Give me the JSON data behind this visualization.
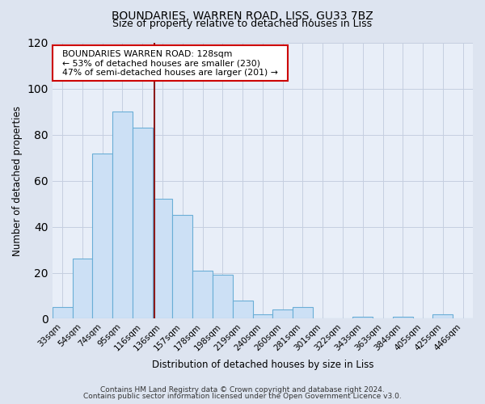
{
  "title": "BOUNDARIES, WARREN ROAD, LISS, GU33 7BZ",
  "subtitle": "Size of property relative to detached houses in Liss",
  "xlabel": "Distribution of detached houses by size in Liss",
  "ylabel": "Number of detached properties",
  "bar_categories": [
    "33sqm",
    "54sqm",
    "74sqm",
    "95sqm",
    "116sqm",
    "136sqm",
    "157sqm",
    "178sqm",
    "198sqm",
    "219sqm",
    "240sqm",
    "260sqm",
    "281sqm",
    "301sqm",
    "322sqm",
    "343sqm",
    "363sqm",
    "384sqm",
    "405sqm",
    "425sqm",
    "446sqm"
  ],
  "bar_values": [
    5,
    26,
    72,
    90,
    83,
    52,
    45,
    21,
    19,
    8,
    2,
    4,
    5,
    0,
    0,
    1,
    0,
    1,
    0,
    2,
    0
  ],
  "bar_color": "#cce0f5",
  "bar_edge_color": "#6aaed6",
  "ylim": [
    0,
    120
  ],
  "yticks": [
    0,
    20,
    40,
    60,
    80,
    100,
    120
  ],
  "vline_color": "#8b1a1a",
  "annotation_title": "BOUNDARIES WARREN ROAD: 128sqm",
  "annotation_line1": "← 53% of detached houses are smaller (230)",
  "annotation_line2": "47% of semi-detached houses are larger (201) →",
  "annotation_box_color": "#ffffff",
  "annotation_box_edge": "#cc0000",
  "footer1": "Contains HM Land Registry data © Crown copyright and database right 2024.",
  "footer2": "Contains public sector information licensed under the Open Government Licence v3.0.",
  "background_color": "#dde4f0",
  "plot_background": "#e8eef8",
  "grid_color": "#c5cfe0",
  "title_fontsize": 10,
  "subtitle_fontsize": 9
}
